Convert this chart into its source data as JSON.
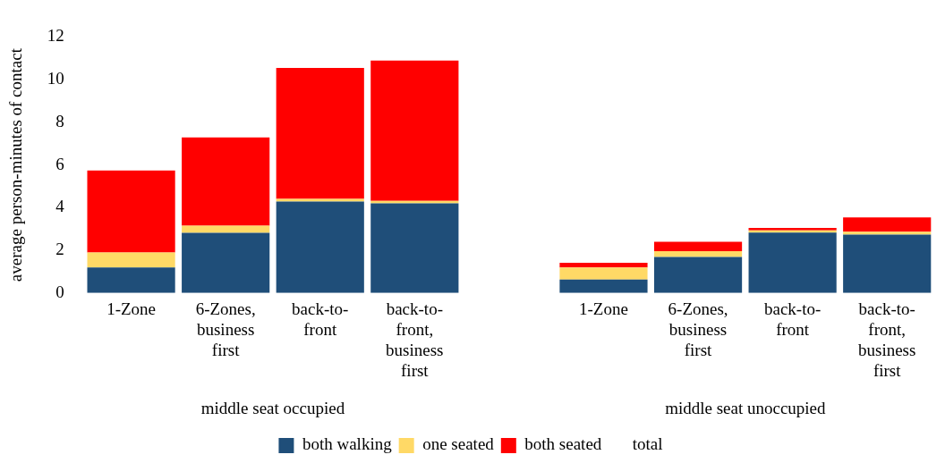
{
  "chart_data": {
    "type": "bar",
    "stacked": true,
    "ylabel": "average person-minutes of contact",
    "categories": [
      "1-Zone",
      "6-Zones, business first",
      "back-to-front",
      "back-to-front, business first",
      null,
      "1-Zone",
      "6-Zones, business first",
      "back-to-front",
      "back-to-front, business first"
    ],
    "series": [
      {
        "name": "both walking",
        "color": "#1f4e79",
        "values": [
          1.2,
          2.82,
          4.29,
          4.2,
          null,
          0.63,
          1.69,
          2.83,
          2.74
        ]
      },
      {
        "name": "one seated",
        "color": "#ffd966",
        "values": [
          0.7,
          0.34,
          0.12,
          0.12,
          null,
          0.57,
          0.27,
          0.11,
          0.13
        ]
      },
      {
        "name": "both seated",
        "color": "#ff0000",
        "values": [
          3.84,
          4.13,
          6.14,
          6.58,
          null,
          0.22,
          0.44,
          0.11,
          0.67
        ]
      }
    ],
    "ylim": [
      0,
      12
    ],
    "yticks": [
      0,
      2,
      4,
      6,
      8,
      10,
      12
    ],
    "grid": false,
    "legend": "bottom",
    "annotations": [
      "middle seat occupied",
      "middle seat unoccupied",
      "total"
    ]
  }
}
